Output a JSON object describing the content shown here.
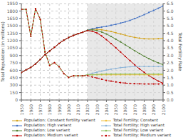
{
  "chart_data": {
    "type": "line",
    "x": [
      1950,
      1955,
      1960,
      1965,
      1970,
      1975,
      1980,
      1985,
      1990,
      1995,
      2000,
      2005,
      2010,
      2015,
      2020,
      2025,
      2030,
      2035,
      2040,
      2045,
      2050,
      2055,
      2060,
      2065,
      2070,
      2075,
      2080,
      2085,
      2090,
      2095,
      2100
    ],
    "xlim": [
      1950,
      2100
    ],
    "xticks": [
      1950,
      1960,
      1970,
      1980,
      1990,
      2000,
      2010,
      2020,
      2030,
      2040,
      2050,
      2060,
      2070,
      2080,
      2090,
      2100
    ],
    "ylabel": "Total Population (in millions)",
    "ylim": [
      0,
      1950
    ],
    "yticks": [
      0,
      150,
      300,
      450,
      600,
      750,
      900,
      1050,
      1200,
      1350,
      1500,
      1650,
      1800,
      1950
    ],
    "y2label": "Total Fertility Rate",
    "y2lim": [
      0.0,
      6.5
    ],
    "y2ticks": [
      {
        "value": 0,
        "label": "0.0"
      },
      0.5,
      {
        "value": 1,
        "label": "1.0"
      },
      1.5,
      {
        "value": 2,
        "label": "2.0"
      },
      2.5,
      {
        "value": 3,
        "label": "3.0"
      },
      3.5,
      {
        "value": 4,
        "label": "4.0"
      },
      4.5,
      {
        "value": 5,
        "label": "5.0"
      },
      5.5,
      {
        "value": 6,
        "label": "6.0"
      },
      6.5
    ],
    "grid": true,
    "legend": "bottom",
    "spans": [
      {
        "x": [
          2020,
          2101
        ],
        "color": "#d8d8d8"
      }
    ],
    "series": [
      {
        "name": "Population: Constant fertility variant",
        "color": "#d4a420",
        "marker": "circle",
        "line_style": "solid",
        "values": [
          554,
          609,
          660,
          729,
          820,
          916,
          991,
          1066,
          1143,
          1211,
          1263,
          1304,
          1341,
          1371,
          1411,
          1430,
          1430,
          1420,
          1405,
          1385,
          1360,
          1335,
          1310,
          1285,
          1265,
          1250,
          1240,
          1235,
          1235,
          1240,
          1248
        ]
      },
      {
        "name": "Population: High variant",
        "color": "#4472c4",
        "marker": "circle",
        "line_style": "solid",
        "values": [
          554,
          609,
          660,
          729,
          820,
          916,
          991,
          1066,
          1143,
          1211,
          1263,
          1304,
          1341,
          1371,
          1411,
          1440,
          1460,
          1475,
          1490,
          1510,
          1530,
          1555,
          1580,
          1610,
          1645,
          1685,
          1725,
          1770,
          1810,
          1855,
          1900
        ]
      },
      {
        "name": "Population: Low variant",
        "color": "#548235",
        "marker": "circle",
        "line_style": "solid",
        "values": [
          554,
          609,
          660,
          729,
          820,
          916,
          991,
          1066,
          1143,
          1211,
          1263,
          1304,
          1341,
          1371,
          1411,
          1420,
          1405,
          1375,
          1335,
          1285,
          1230,
          1175,
          1115,
          1055,
          995,
          940,
          885,
          835,
          790,
          750,
          714
        ]
      },
      {
        "name": "Population: Medium variant",
        "color": "#c00000",
        "marker": "circle",
        "line_style": "solid",
        "values": [
          554,
          609,
          660,
          729,
          820,
          916,
          991,
          1066,
          1143,
          1211,
          1263,
          1304,
          1341,
          1371,
          1405,
          1390,
          1355,
          1295,
          1220,
          1140,
          1055,
          970,
          880,
          795,
          710,
          630,
          560,
          495,
          435,
          382,
          337
        ]
      },
      {
        "name": "Total Fertility: Constant",
        "color": "#f0c040",
        "marker": "circle",
        "line_style": "solid",
        "axis": "y2",
        "values": [
          6.11,
          6.11,
          4.3,
          6.16,
          5.44,
          3.24,
          2.33,
          2.51,
          2.24,
          1.78,
          1.52,
          1.63,
          1.63,
          1.63,
          1.7,
          1.7,
          1.7,
          1.7,
          1.7,
          1.7,
          1.7,
          1.7,
          1.7,
          1.7,
          1.7,
          1.7,
          1.7,
          1.7,
          1.7,
          1.7,
          1.7
        ]
      },
      {
        "name": "Total Fertility: High variant",
        "color": "#8db4d8",
        "marker": "circle",
        "line_style": "solid",
        "axis": "y2",
        "values": [
          6.11,
          6.11,
          4.3,
          6.16,
          5.44,
          3.24,
          2.33,
          2.51,
          2.24,
          1.78,
          1.52,
          1.63,
          1.63,
          1.63,
          1.7,
          1.8,
          1.87,
          1.95,
          2.02,
          2.08,
          2.13,
          2.18,
          2.21,
          2.24,
          2.25,
          2.26,
          2.26,
          2.26,
          2.26,
          2.26,
          2.26
        ]
      },
      {
        "name": "Total Fertility: Low variant",
        "color": "#92c060",
        "marker": "circle",
        "line_style": "solid",
        "axis": "y2",
        "values": [
          6.11,
          6.11,
          4.3,
          6.16,
          5.44,
          3.24,
          2.33,
          2.51,
          2.24,
          1.78,
          1.52,
          1.63,
          1.63,
          1.63,
          1.7,
          1.7,
          1.72,
          1.74,
          1.75,
          1.75,
          1.75,
          1.75,
          1.75,
          1.75,
          1.75,
          1.75,
          1.75,
          1.75,
          1.75,
          1.75,
          1.75
        ]
      },
      {
        "name": "Total Fertility: Medium variant",
        "color": "#c00000",
        "marker": "circle",
        "line_style": "dashed",
        "axis": "y2",
        "values": [
          6.11,
          6.11,
          4.3,
          6.16,
          5.44,
          3.24,
          2.33,
          2.51,
          2.24,
          1.78,
          1.52,
          1.63,
          1.63,
          1.63,
          1.65,
          1.55,
          1.48,
          1.4,
          1.32,
          1.27,
          1.22,
          1.17,
          1.14,
          1.12,
          1.1,
          1.09,
          1.08,
          1.08,
          1.08,
          1.08,
          1.08
        ]
      }
    ]
  }
}
